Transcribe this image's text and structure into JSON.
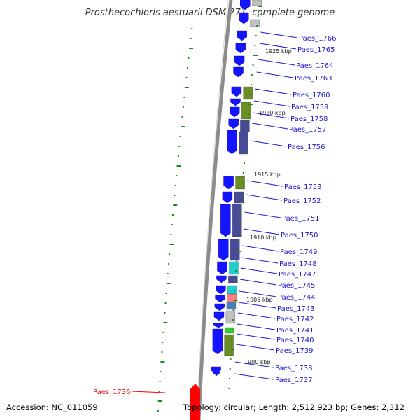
{
  "title": "Prosthecochloris aestuarii DSM 271, complete genome",
  "footer": {
    "accession": "Accession: NC_011059",
    "topology": "Topology: circular; Length: 2,512,923 bp; Genes: 2,312"
  },
  "colors": {
    "backbone": "#8c8c8c",
    "cds": "#1414ff",
    "highlight": "#ff0000",
    "leader": "#1a1acc",
    "tick": "#1a8a1a",
    "cog_olive": "#6b8e23",
    "cog_navy": "#4a4a9a",
    "cog_gray": "#c0c0c0",
    "cog_cyan": "#20d0d0",
    "cog_green": "#33cc33",
    "cog_steel": "#4a7fbf",
    "cog_pink": "#ff7f7f"
  },
  "kbp_labels": [
    "1925 kbp",
    "1920 kbp",
    "1915 kbp",
    "1910 kbp",
    "1905 kbp",
    "1900 kbp"
  ],
  "gene_labels": [
    {
      "text": "Paes_1766"
    },
    {
      "text": "Paes_1765"
    },
    {
      "text": "Paes_1764"
    },
    {
      "text": "Paes_1763"
    },
    {
      "text": "Paes_1760"
    },
    {
      "text": "Paes_1759"
    },
    {
      "text": "Paes_1758"
    },
    {
      "text": "Paes_1757"
    },
    {
      "text": "Paes_1756"
    },
    {
      "text": "Paes_1753"
    },
    {
      "text": "Paes_1752"
    },
    {
      "text": "Paes_1751"
    },
    {
      "text": "Paes_1750"
    },
    {
      "text": "Paes_1749"
    },
    {
      "text": "Paes_1748"
    },
    {
      "text": "Paes_1747"
    },
    {
      "text": "Paes_1745"
    },
    {
      "text": "Paes_1744"
    },
    {
      "text": "Paes_1743"
    },
    {
      "text": "Paes_1742"
    },
    {
      "text": "Paes_1741"
    },
    {
      "text": "Paes_1740"
    },
    {
      "text": "Paes_1739"
    },
    {
      "text": "Paes_1738"
    },
    {
      "text": "Paes_1737"
    },
    {
      "text": "Paes_1736"
    }
  ]
}
